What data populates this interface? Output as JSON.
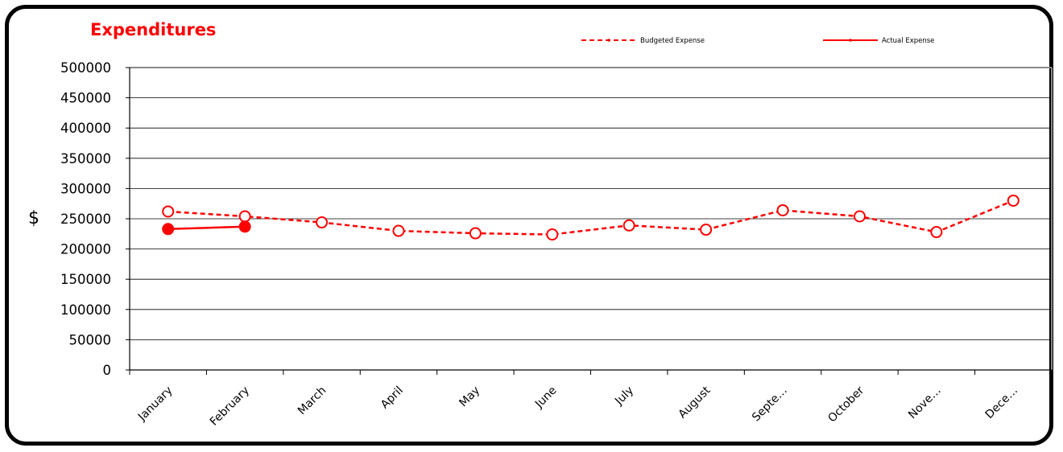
{
  "chart_data": {
    "type": "line",
    "title": "Expenditures",
    "xlabel": "",
    "ylabel": "$",
    "ylim": [
      0,
      500000
    ],
    "yticks": [
      0,
      50000,
      100000,
      150000,
      200000,
      250000,
      300000,
      350000,
      400000,
      450000,
      500000
    ],
    "categories": [
      "January",
      "February",
      "March",
      "April",
      "May",
      "June",
      "July",
      "August",
      "Septe…",
      "October",
      "Nove…",
      "Dece…"
    ],
    "series": [
      {
        "name": "Budgeted Expense",
        "style": "dashed",
        "marker": "open-circle",
        "color": "#ff0000",
        "values": [
          262000,
          254000,
          244000,
          230000,
          226000,
          224000,
          239000,
          232000,
          264000,
          254000,
          228000,
          280000
        ]
      },
      {
        "name": "Actual Expense",
        "style": "solid",
        "marker": "filled-circle",
        "color": "#ff0000",
        "values": [
          233000,
          237000,
          null,
          null,
          null,
          null,
          null,
          null,
          null,
          null,
          null,
          null
        ]
      }
    ],
    "grid": true,
    "legend_position": "top-right"
  }
}
